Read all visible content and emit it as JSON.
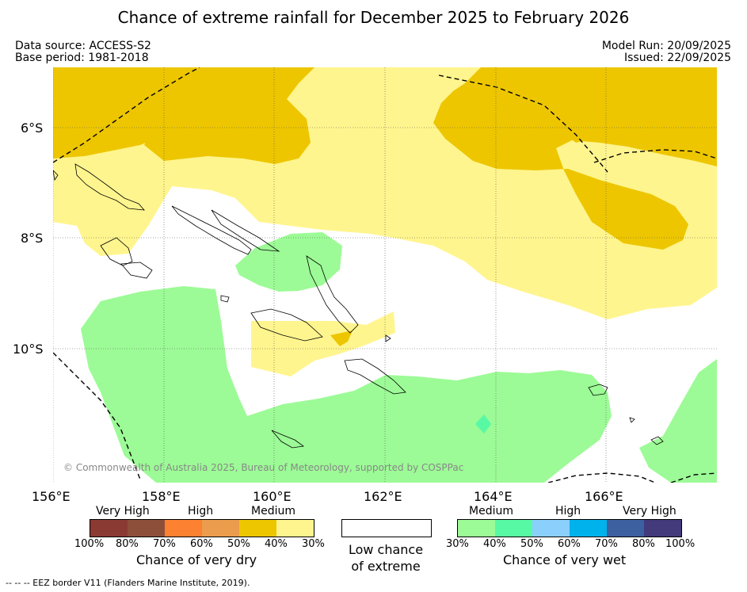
{
  "header": {
    "title": "Chance of extreme rainfall for December 2025 to February 2026",
    "data_source": "Data source: ACCESS-S2",
    "base_period": "Base period: 1981-2018",
    "model_run": "Model Run: 20/09/2025",
    "issued": "Issued: 22/09/2025"
  },
  "map": {
    "lat_labels": [
      "6°S",
      "8°S",
      "10°S"
    ],
    "lon_labels": [
      "156°E",
      "158°E",
      "160°E",
      "162°E",
      "164°E",
      "166°E"
    ],
    "copyright": "© Commonwealth of Australia 2025, Bureau of Meteorology, supported by COSPPac",
    "region_colors": {
      "dry_medium_high": "#edc600",
      "dry_medium_low": "#fff58e",
      "wet_medium": "#9cfb96",
      "wet_medium_high": "#58f9a4"
    }
  },
  "legend": {
    "dry": {
      "categories": [
        "Very High",
        "High",
        "Medium"
      ],
      "colors": [
        "#8b3a33",
        "#8e4f3a",
        "#fc8130",
        "#ec9c4d",
        "#edc600",
        "#fff58e"
      ],
      "percent_labels": [
        "100%",
        "80%",
        "70%",
        "60%",
        "50%",
        "40%",
        "30%"
      ],
      "title": "Chance of very dry"
    },
    "low": {
      "title_line1": "Low chance",
      "title_line2": "of extreme"
    },
    "wet": {
      "categories": [
        "Medium",
        "High",
        "Very High"
      ],
      "colors": [
        "#9cfb96",
        "#58f9a4",
        "#8bcffc",
        "#00b2ec",
        "#3d61a0",
        "#423a7b"
      ],
      "percent_labels": [
        "30%",
        "40%",
        "50%",
        "60%",
        "70%",
        "80%",
        "100%"
      ],
      "title": "Chance of very wet"
    }
  },
  "footnote": "--  --  -- EEZ border V11 (Flanders Marine Institute, 2019)."
}
